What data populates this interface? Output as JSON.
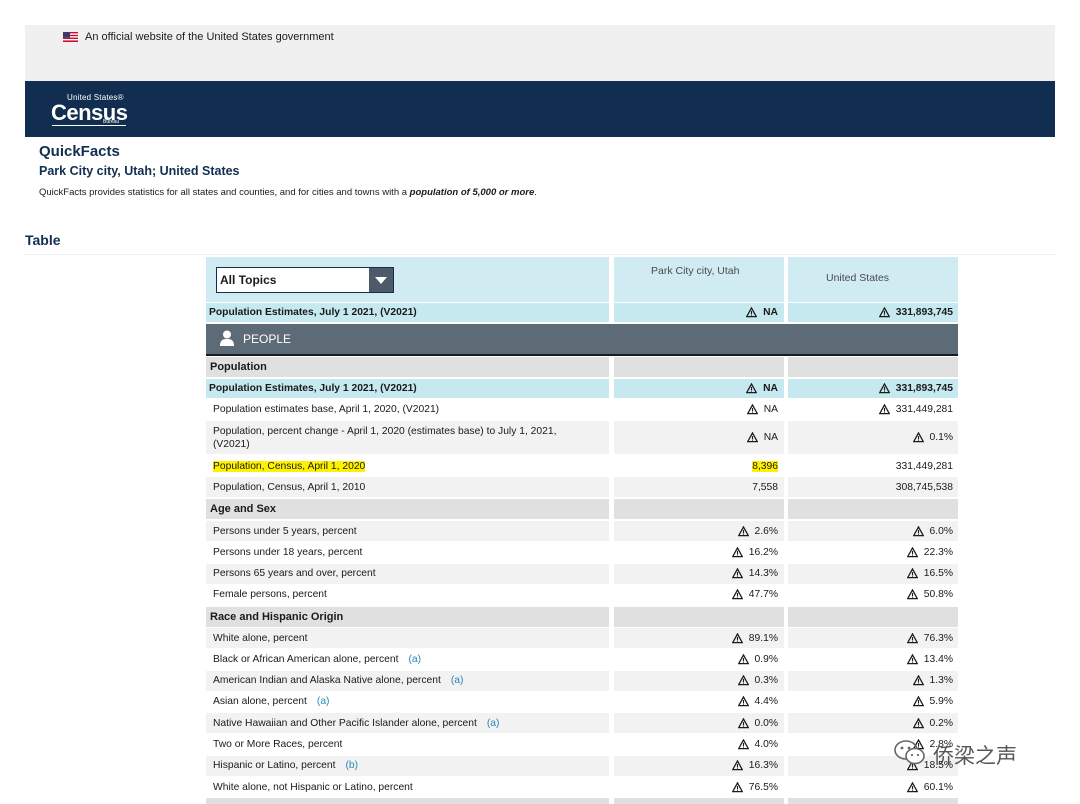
{
  "gov_banner": {
    "text": "An official website of the United States government"
  },
  "logo": {
    "united_states": "United States®",
    "census": "Census",
    "bureau": "Bureau"
  },
  "page": {
    "title": "QuickFacts",
    "place": "Park City city, Utah; United States",
    "desc_prefix": "QuickFacts provides statistics for all states and counties, and for cities and towns with a ",
    "desc_bold": "population of 5,000 or more",
    "desc_suffix": ".",
    "table_heading": "Table"
  },
  "table": {
    "topics_select": "All Topics",
    "col1": "Park City city, Utah",
    "col2": "United States",
    "top_row": {
      "label": "Population Estimates, July 1 2021, (V2021)",
      "v1": "NA",
      "v2": "331,893,745"
    },
    "people_label": "PEOPLE",
    "population_section": "Population",
    "pop_rows": [
      {
        "label": "Population Estimates, July 1 2021, (V2021)",
        "v1": "NA",
        "v2": "331,893,745"
      },
      {
        "label": "Population estimates base, April 1, 2020, (V2021)",
        "v1": "NA",
        "v2": "331,449,281"
      },
      {
        "label": "Population, percent change - April 1, 2020 (estimates base) to July 1, 2021, (V2021)",
        "v1": "NA",
        "v2": "0.1%"
      },
      {
        "label": "Population, Census, April 1, 2020",
        "v1": "8,396",
        "v2": "331,449,281"
      },
      {
        "label": "Population, Census, April 1, 2010",
        "v1": "7,558",
        "v2": "308,745,538"
      }
    ],
    "age_section": "Age and Sex",
    "age_rows": [
      {
        "label": "Persons under 5 years, percent",
        "v1": "2.6%",
        "v2": "6.0%"
      },
      {
        "label": "Persons under 18 years, percent",
        "v1": "16.2%",
        "v2": "22.3%"
      },
      {
        "label": "Persons 65 years and over, percent",
        "v1": "14.3%",
        "v2": "16.5%"
      },
      {
        "label": "Female persons, percent",
        "v1": "47.7%",
        "v2": "50.8%"
      }
    ],
    "race_section": "Race and Hispanic Origin",
    "race_rows": [
      {
        "label": "White alone, percent",
        "note": "",
        "v1": "89.1%",
        "v2": "76.3%"
      },
      {
        "label": "Black or African American alone, percent",
        "note": "(a)",
        "v1": "0.9%",
        "v2": "13.4%"
      },
      {
        "label": "American Indian and Alaska Native alone, percent",
        "note": "(a)",
        "v1": "0.3%",
        "v2": "1.3%"
      },
      {
        "label": "Asian alone, percent",
        "note": "(a)",
        "v1": "4.4%",
        "v2": "5.9%"
      },
      {
        "label": "Native Hawaiian and Other Pacific Islander alone, percent",
        "note": "(a)",
        "v1": "0.0%",
        "v2": "0.2%"
      },
      {
        "label": "Two or More Races, percent",
        "note": "",
        "v1": "4.0%",
        "v2": "2.8%"
      },
      {
        "label": "Hispanic or Latino, percent",
        "note": "(b)",
        "v1": "16.3%",
        "v2": "18.5%"
      },
      {
        "label": "White alone, not Hispanic or Latino, percent",
        "note": "",
        "v1": "76.5%",
        "v2": "60.1%"
      }
    ]
  },
  "watermark": {
    "text": "侨梁之声"
  }
}
